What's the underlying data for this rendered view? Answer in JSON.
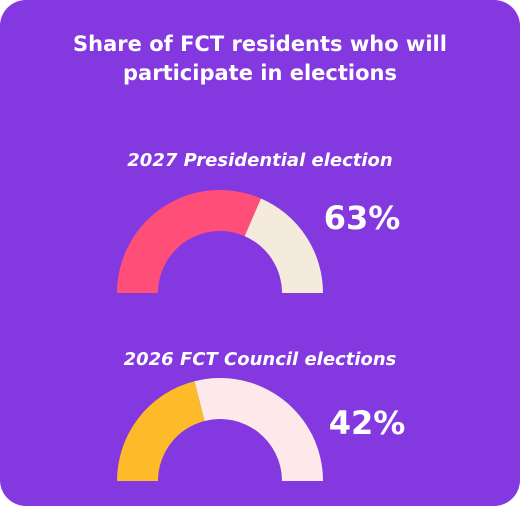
{
  "title": "Share of FCT residents who will participate in elections",
  "chart_data": [
    {
      "type": "gauge",
      "title": "2027 Presidential election",
      "values": [
        63
      ],
      "value_labels": [
        "63%"
      ],
      "ylim": [
        0,
        100
      ],
      "color": "#ff4f79",
      "track_color": "#f5ebdc"
    },
    {
      "type": "gauge",
      "title": "2026 FCT Council elections",
      "values": [
        42
      ],
      "value_labels": [
        "42%"
      ],
      "ylim": [
        0,
        100
      ],
      "color": "#fdbb2a",
      "track_color": "#fde9ea"
    }
  ]
}
